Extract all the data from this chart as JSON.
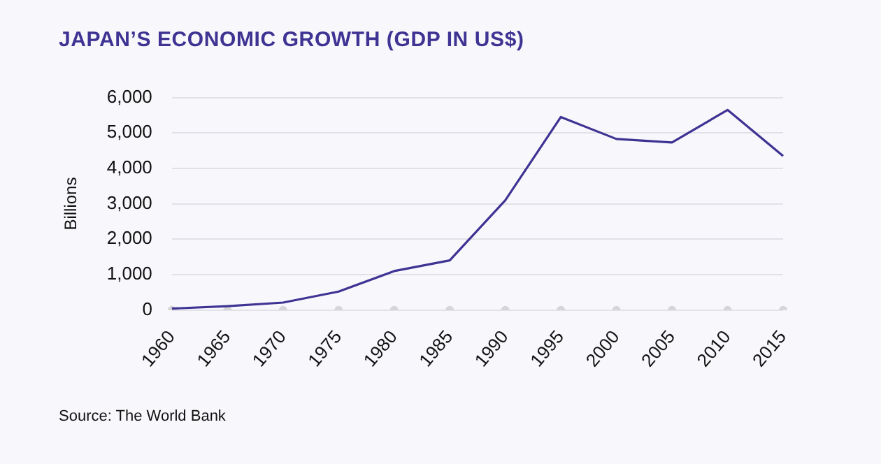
{
  "chart_data": {
    "type": "line",
    "title": "JAPAN’S ECONOMIC GROWTH (GDP IN US$)",
    "ylabel": "Billions",
    "categories": [
      "1960",
      "1965",
      "1970",
      "1975",
      "1980",
      "1985",
      "1990",
      "1995",
      "2000",
      "2005",
      "2010",
      "2015"
    ],
    "series": [
      {
        "color": "#3f3393",
        "values": [
          40,
          110,
          210,
          520,
          1100,
          1400,
          3100,
          5450,
          4830,
          4730,
          5650,
          4350
        ]
      },
      {
        "type": "scatter",
        "color": "#d6d6d8",
        "marker": "circle",
        "values": [
          0,
          0,
          0,
          0,
          0,
          0,
          0,
          0,
          0,
          0,
          0,
          0
        ]
      }
    ],
    "ylim": [
      0,
      6000
    ],
    "yticks": [
      {
        "value": 0,
        "label": "0"
      },
      {
        "value": 1000,
        "label": "1,000"
      },
      {
        "value": 2000,
        "label": "2,000"
      },
      {
        "value": 3000,
        "label": "3,000"
      },
      {
        "value": 4000,
        "label": "4,000"
      },
      {
        "value": 5000,
        "label": "5,000"
      },
      {
        "value": 6000,
        "label": "6,000"
      }
    ],
    "grid": "y",
    "legend": false,
    "marker": "none",
    "line_style": "solid",
    "annotations": [
      "Source: The World Bank"
    ]
  }
}
